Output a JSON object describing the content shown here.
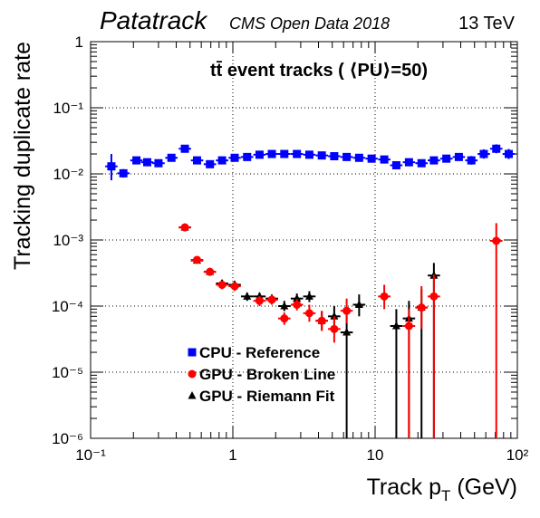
{
  "header": {
    "brand": "Patatrack",
    "dataset": "CMS Open Data 2018",
    "energy": "13 TeV"
  },
  "chart_data": {
    "type": "scatter",
    "title": "tt̄ event tracks ( ⟨PU⟩=50)",
    "xlabel": "Track p_T (GeV)",
    "ylabel": "Tracking duplicate rate",
    "xscale": "log",
    "yscale": "log",
    "xlim": [
      0.1,
      100
    ],
    "ylim": [
      1e-06,
      1
    ],
    "x_ticks": [
      {
        "value": 0.1,
        "label": "10⁻¹"
      },
      {
        "value": 1,
        "label": "1"
      },
      {
        "value": 10,
        "label": "10"
      },
      {
        "value": 100,
        "label": "10²"
      }
    ],
    "y_ticks": [
      {
        "value": 1,
        "label": "1"
      },
      {
        "value": 0.1,
        "label": "10⁻¹"
      },
      {
        "value": 0.01,
        "label": "10⁻²"
      },
      {
        "value": 0.001,
        "label": "10⁻³"
      },
      {
        "value": 0.0001,
        "label": "10⁻⁴"
      },
      {
        "value": 1e-05,
        "label": "10⁻⁵"
      },
      {
        "value": 1e-06,
        "label": "10⁻⁶"
      }
    ],
    "grid": true,
    "legend_position": "bottom-left",
    "series": [
      {
        "name": "CPU - Reference",
        "color": "#0000ff",
        "marker": "square",
        "points": [
          {
            "x": 0.14,
            "y": 0.013,
            "ylo": 0.008,
            "yhi": 0.02
          },
          {
            "x": 0.17,
            "y": 0.0102,
            "ylo": 0.0088,
            "yhi": 0.0118
          },
          {
            "x": 0.21,
            "y": 0.016,
            "ylo": 0.0145,
            "yhi": 0.0176
          },
          {
            "x": 0.25,
            "y": 0.015,
            "ylo": 0.0138,
            "yhi": 0.0163
          },
          {
            "x": 0.3,
            "y": 0.0145,
            "ylo": 0.0135,
            "yhi": 0.0156
          },
          {
            "x": 0.37,
            "y": 0.0175,
            "ylo": 0.0162,
            "yhi": 0.0188
          },
          {
            "x": 0.46,
            "y": 0.024,
            "ylo": 0.022,
            "yhi": 0.026
          },
          {
            "x": 0.56,
            "y": 0.016,
            "ylo": 0.0148,
            "yhi": 0.0172
          },
          {
            "x": 0.69,
            "y": 0.014,
            "ylo": 0.0131,
            "yhi": 0.015
          },
          {
            "x": 0.84,
            "y": 0.016,
            "ylo": 0.0151,
            "yhi": 0.0169
          },
          {
            "x": 1.03,
            "y": 0.0175,
            "ylo": 0.0166,
            "yhi": 0.0184
          },
          {
            "x": 1.26,
            "y": 0.018,
            "ylo": 0.0171,
            "yhi": 0.0189
          },
          {
            "x": 1.54,
            "y": 0.0195,
            "ylo": 0.0185,
            "yhi": 0.0205
          },
          {
            "x": 1.88,
            "y": 0.02,
            "ylo": 0.019,
            "yhi": 0.021
          },
          {
            "x": 2.3,
            "y": 0.02,
            "ylo": 0.019,
            "yhi": 0.021
          },
          {
            "x": 2.82,
            "y": 0.02,
            "ylo": 0.019,
            "yhi": 0.021
          },
          {
            "x": 3.45,
            "y": 0.0195,
            "ylo": 0.0185,
            "yhi": 0.0205
          },
          {
            "x": 4.22,
            "y": 0.019,
            "ylo": 0.018,
            "yhi": 0.02
          },
          {
            "x": 5.16,
            "y": 0.0185,
            "ylo": 0.0175,
            "yhi": 0.0195
          },
          {
            "x": 6.31,
            "y": 0.018,
            "ylo": 0.017,
            "yhi": 0.019
          },
          {
            "x": 7.72,
            "y": 0.0175,
            "ylo": 0.0165,
            "yhi": 0.0186
          },
          {
            "x": 9.45,
            "y": 0.017,
            "ylo": 0.016,
            "yhi": 0.0181
          },
          {
            "x": 11.6,
            "y": 0.0165,
            "ylo": 0.0154,
            "yhi": 0.0177
          },
          {
            "x": 14.1,
            "y": 0.0135,
            "ylo": 0.0124,
            "yhi": 0.0147
          },
          {
            "x": 17.3,
            "y": 0.015,
            "ylo": 0.0138,
            "yhi": 0.0163
          },
          {
            "x": 21.2,
            "y": 0.0145,
            "ylo": 0.0132,
            "yhi": 0.0159
          },
          {
            "x": 25.9,
            "y": 0.016,
            "ylo": 0.0145,
            "yhi": 0.0176
          },
          {
            "x": 31.7,
            "y": 0.017,
            "ylo": 0.0152,
            "yhi": 0.019
          },
          {
            "x": 38.8,
            "y": 0.018,
            "ylo": 0.0158,
            "yhi": 0.0205
          },
          {
            "x": 47.5,
            "y": 0.016,
            "ylo": 0.0138,
            "yhi": 0.0186
          },
          {
            "x": 58.1,
            "y": 0.02,
            "ylo": 0.017,
            "yhi": 0.0235
          },
          {
            "x": 71.1,
            "y": 0.024,
            "ylo": 0.0205,
            "yhi": 0.028
          },
          {
            "x": 87.0,
            "y": 0.02,
            "ylo": 0.0168,
            "yhi": 0.0238
          }
        ]
      },
      {
        "name": "GPU - Broken Line",
        "color": "#ff0000",
        "marker": "circle",
        "points": [
          {
            "x": 0.46,
            "y": 0.00155,
            "ylo": 0.00138,
            "yhi": 0.00172
          },
          {
            "x": 0.56,
            "y": 0.0005,
            "ylo": 0.00044,
            "yhi": 0.00056
          },
          {
            "x": 0.69,
            "y": 0.00033,
            "ylo": 0.00029,
            "yhi": 0.00037
          },
          {
            "x": 0.84,
            "y": 0.00021,
            "ylo": 0.00018,
            "yhi": 0.00024
          },
          {
            "x": 1.03,
            "y": 0.0002,
            "ylo": 0.00017,
            "yhi": 0.00023
          },
          {
            "x": 1.54,
            "y": 0.00012,
            "ylo": 0.0001,
            "yhi": 0.000142
          },
          {
            "x": 1.88,
            "y": 0.000125,
            "ylo": 0.000105,
            "yhi": 0.000148
          },
          {
            "x": 2.3,
            "y": 6.5e-05,
            "ylo": 5.2e-05,
            "yhi": 8e-05
          },
          {
            "x": 2.82,
            "y": 0.000105,
            "ylo": 8.6e-05,
            "yhi": 0.000128
          },
          {
            "x": 3.45,
            "y": 7.8e-05,
            "ylo": 5.8e-05,
            "yhi": 0.000105
          },
          {
            "x": 4.22,
            "y": 6e-05,
            "ylo": 4.2e-05,
            "yhi": 8.5e-05
          },
          {
            "x": 5.16,
            "y": 4.5e-05,
            "ylo": 2.8e-05,
            "yhi": 7e-05
          },
          {
            "x": 6.31,
            "y": 8.5e-05,
            "ylo": 5.5e-05,
            "yhi": 0.00013
          },
          {
            "x": 11.6,
            "y": 0.00014,
            "ylo": 9e-05,
            "yhi": 0.00021
          },
          {
            "x": 17.3,
            "y": 5e-05,
            "ylo": 1e-06,
            "yhi": 9e-05
          },
          {
            "x": 21.2,
            "y": 9.5e-05,
            "ylo": 4.5e-05,
            "yhi": 0.0002
          },
          {
            "x": 25.9,
            "y": 0.00014,
            "ylo": 1e-06,
            "yhi": 0.0003
          },
          {
            "x": 71.1,
            "y": 0.00097,
            "ylo": 1e-06,
            "yhi": 0.0018
          }
        ]
      },
      {
        "name": "GPU - Riemann Fit",
        "color": "#000000",
        "marker": "triangle",
        "points": [
          {
            "x": 0.46,
            "y": 0.00155,
            "ylo": 0.0014,
            "yhi": 0.0017
          },
          {
            "x": 0.56,
            "y": 0.00049,
            "ylo": 0.00044,
            "yhi": 0.00055
          },
          {
            "x": 0.69,
            "y": 0.00033,
            "ylo": 0.00029,
            "yhi": 0.00037
          },
          {
            "x": 0.84,
            "y": 0.00022,
            "ylo": 0.00019,
            "yhi": 0.00025
          },
          {
            "x": 1.03,
            "y": 0.00021,
            "ylo": 0.00018,
            "yhi": 0.00024
          },
          {
            "x": 1.26,
            "y": 0.00014,
            "ylo": 0.00012,
            "yhi": 0.00016
          },
          {
            "x": 1.54,
            "y": 0.00014,
            "ylo": 0.00012,
            "yhi": 0.00016
          },
          {
            "x": 1.88,
            "y": 0.00013,
            "ylo": 0.00011,
            "yhi": 0.00015
          },
          {
            "x": 2.3,
            "y": 0.0001,
            "ylo": 8.4e-05,
            "yhi": 0.00012
          },
          {
            "x": 2.82,
            "y": 0.00013,
            "ylo": 0.00011,
            "yhi": 0.000155
          },
          {
            "x": 3.45,
            "y": 0.00014,
            "ylo": 0.000115,
            "yhi": 0.000168
          },
          {
            "x": 4.22,
            "y": 6e-05,
            "ylo": 4.4e-05,
            "yhi": 8.2e-05
          },
          {
            "x": 5.16,
            "y": 7e-05,
            "ylo": 5e-05,
            "yhi": 0.0001
          },
          {
            "x": 6.31,
            "y": 4e-05,
            "ylo": 1e-06,
            "yhi": 8e-05
          },
          {
            "x": 7.72,
            "y": 0.000105,
            "ylo": 7e-05,
            "yhi": 0.00015
          },
          {
            "x": 14.1,
            "y": 5e-05,
            "ylo": 1e-06,
            "yhi": 9e-05
          },
          {
            "x": 17.3,
            "y": 6.5e-05,
            "ylo": 1e-06,
            "yhi": 0.00012
          },
          {
            "x": 21.2,
            "y": 9.5e-05,
            "ylo": 1e-06,
            "yhi": 0.00018
          },
          {
            "x": 25.9,
            "y": 0.00029,
            "ylo": 1e-06,
            "yhi": 0.00045
          }
        ]
      }
    ]
  }
}
